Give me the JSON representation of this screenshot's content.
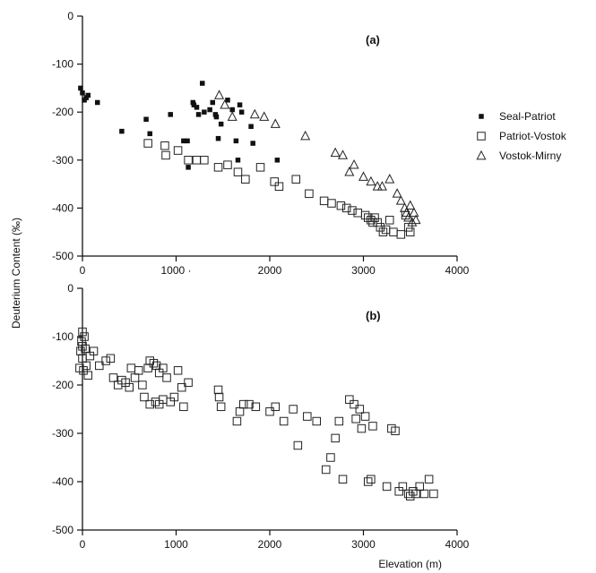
{
  "chart_data": [
    {
      "type": "scatter",
      "panel_label": "(a)",
      "xlabel": "",
      "ylabel": "Deuterium Content (‰)",
      "xlim": [
        0,
        4000
      ],
      "ylim": [
        -500,
        0
      ],
      "xticks": [
        "0",
        "1000 ·",
        "2000",
        "3000",
        "4000"
      ],
      "yticks": [
        "0",
        "-100",
        "-200",
        "-300",
        "-400",
        "-500"
      ],
      "legend_position": "right",
      "series": [
        {
          "name": "Seal-Patriot",
          "marker": "filled-square",
          "points": [
            [
              -20,
              -150
            ],
            [
              0,
              -160
            ],
            [
              20,
              -175
            ],
            [
              40,
              -170
            ],
            [
              60,
              -165
            ],
            [
              160,
              -180
            ],
            [
              420,
              -240
            ],
            [
              680,
              -215
            ],
            [
              720,
              -245
            ],
            [
              940,
              -205
            ],
            [
              1080,
              -260
            ],
            [
              1120,
              -260
            ],
            [
              1130,
              -315
            ],
            [
              1180,
              -180
            ],
            [
              1190,
              -185
            ],
            [
              1220,
              -190
            ],
            [
              1240,
              -205
            ],
            [
              1280,
              -140
            ],
            [
              1300,
              -200
            ],
            [
              1360,
              -195
            ],
            [
              1390,
              -180
            ],
            [
              1420,
              -205
            ],
            [
              1430,
              -210
            ],
            [
              1450,
              -255
            ],
            [
              1480,
              -225
            ],
            [
              1550,
              -175
            ],
            [
              1600,
              -195
            ],
            [
              1640,
              -260
            ],
            [
              1660,
              -300
            ],
            [
              1680,
              -185
            ],
            [
              1700,
              -200
            ],
            [
              1800,
              -230
            ],
            [
              1820,
              -265
            ],
            [
              2080,
              -300
            ]
          ]
        },
        {
          "name": "Patriot-Vostok",
          "marker": "open-square",
          "points": [
            [
              700,
              -265
            ],
            [
              880,
              -270
            ],
            [
              890,
              -290
            ],
            [
              1020,
              -280
            ],
            [
              1130,
              -300
            ],
            [
              1220,
              -300
            ],
            [
              1300,
              -300
            ],
            [
              1450,
              -315
            ],
            [
              1550,
              -310
            ],
            [
              1660,
              -325
            ],
            [
              1740,
              -340
            ],
            [
              1900,
              -315
            ],
            [
              2050,
              -345
            ],
            [
              2100,
              -355
            ],
            [
              2280,
              -340
            ],
            [
              2420,
              -370
            ],
            [
              2580,
              -385
            ],
            [
              2660,
              -390
            ],
            [
              2760,
              -395
            ],
            [
              2820,
              -400
            ],
            [
              2880,
              -405
            ],
            [
              2940,
              -410
            ],
            [
              3020,
              -415
            ],
            [
              3050,
              -420
            ],
            [
              3080,
              -425
            ],
            [
              3100,
              -430
            ],
            [
              3120,
              -420
            ],
            [
              3150,
              -430
            ],
            [
              3180,
              -440
            ],
            [
              3210,
              -450
            ],
            [
              3240,
              -445
            ],
            [
              3280,
              -425
            ],
            [
              3320,
              -450
            ],
            [
              3400,
              -455
            ],
            [
              3450,
              -415
            ],
            [
              3480,
              -440
            ],
            [
              3500,
              -450
            ]
          ]
        },
        {
          "name": "Vostok-Mirny",
          "marker": "open-triangle",
          "points": [
            [
              1460,
              -165
            ],
            [
              1520,
              -185
            ],
            [
              1600,
              -210
            ],
            [
              1840,
              -205
            ],
            [
              1940,
              -210
            ],
            [
              2060,
              -225
            ],
            [
              2380,
              -250
            ],
            [
              2700,
              -285
            ],
            [
              2780,
              -290
            ],
            [
              2850,
              -325
            ],
            [
              2900,
              -310
            ],
            [
              3000,
              -335
            ],
            [
              3080,
              -345
            ],
            [
              3150,
              -355
            ],
            [
              3200,
              -355
            ],
            [
              3280,
              -340
            ],
            [
              3360,
              -370
            ],
            [
              3400,
              -385
            ],
            [
              3440,
              -400
            ],
            [
              3460,
              -410
            ],
            [
              3480,
              -420
            ],
            [
              3500,
              -395
            ],
            [
              3520,
              -430
            ],
            [
              3540,
              -410
            ],
            [
              3560,
              -425
            ]
          ]
        }
      ]
    },
    {
      "type": "scatter",
      "panel_label": "(b)",
      "xlabel": "Elevation  (m)",
      "ylabel": "",
      "xlim": [
        0,
        4000
      ],
      "ylim": [
        -500,
        0
      ],
      "xticks": [
        "0",
        "1000",
        "2000",
        "3000",
        "4000"
      ],
      "yticks": [
        "0",
        "-100",
        "-200",
        "-300",
        "-400",
        "-500"
      ],
      "series": [
        {
          "name": "",
          "marker": "open-square",
          "points": [
            [
              -30,
              -165
            ],
            [
              -20,
              -130
            ],
            [
              -10,
              -110
            ],
            [
              0,
              -90
            ],
            [
              0,
              -120
            ],
            [
              0,
              -145
            ],
            [
              10,
              -170
            ],
            [
              20,
              -100
            ],
            [
              30,
              -125
            ],
            [
              40,
              -160
            ],
            [
              60,
              -180
            ],
            [
              80,
              -140
            ],
            [
              120,
              -130
            ],
            [
              180,
              -160
            ],
            [
              250,
              -150
            ],
            [
              300,
              -145
            ],
            [
              330,
              -185
            ],
            [
              380,
              -200
            ],
            [
              420,
              -190
            ],
            [
              460,
              -195
            ],
            [
              500,
              -205
            ],
            [
              520,
              -165
            ],
            [
              560,
              -185
            ],
            [
              600,
              -170
            ],
            [
              640,
              -200
            ],
            [
              660,
              -225
            ],
            [
              700,
              -165
            ],
            [
              720,
              -150
            ],
            [
              760,
              -155
            ],
            [
              790,
              -160
            ],
            [
              820,
              -175
            ],
            [
              860,
              -165
            ],
            [
              900,
              -185
            ],
            [
              940,
              -235
            ],
            [
              980,
              -225
            ],
            [
              1020,
              -170
            ],
            [
              1060,
              -205
            ],
            [
              720,
              -240
            ],
            [
              780,
              -235
            ],
            [
              820,
              -240
            ],
            [
              860,
              -230
            ],
            [
              1080,
              -245
            ],
            [
              1130,
              -195
            ],
            [
              1450,
              -210
            ],
            [
              1460,
              -225
            ],
            [
              1480,
              -245
            ],
            [
              1650,
              -275
            ],
            [
              1680,
              -255
            ],
            [
              1720,
              -240
            ],
            [
              1780,
              -240
            ],
            [
              1850,
              -245
            ],
            [
              2000,
              -255
            ],
            [
              2060,
              -245
            ],
            [
              2150,
              -275
            ],
            [
              2250,
              -250
            ],
            [
              2300,
              -325
            ],
            [
              2400,
              -265
            ],
            [
              2500,
              -275
            ],
            [
              2600,
              -375
            ],
            [
              2650,
              -350
            ],
            [
              2700,
              -310
            ],
            [
              2740,
              -275
            ],
            [
              2780,
              -395
            ],
            [
              2850,
              -230
            ],
            [
              2900,
              -240
            ],
            [
              2920,
              -270
            ],
            [
              2960,
              -250
            ],
            [
              2980,
              -290
            ],
            [
              3020,
              -265
            ],
            [
              3050,
              -400
            ],
            [
              3080,
              -395
            ],
            [
              3100,
              -285
            ],
            [
              3250,
              -410
            ],
            [
              3300,
              -290
            ],
            [
              3340,
              -295
            ],
            [
              3380,
              -420
            ],
            [
              3420,
              -410
            ],
            [
              3480,
              -425
            ],
            [
              3500,
              -430
            ],
            [
              3530,
              -420
            ],
            [
              3560,
              -425
            ],
            [
              3600,
              -410
            ],
            [
              3650,
              -425
            ],
            [
              3700,
              -395
            ],
            [
              3750,
              -425
            ]
          ]
        }
      ]
    }
  ]
}
